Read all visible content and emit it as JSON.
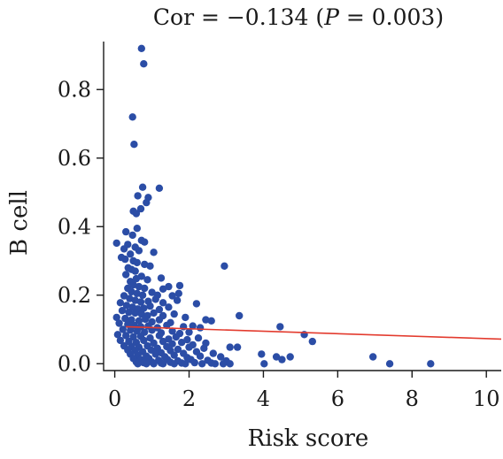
{
  "chart_data": {
    "type": "scatter",
    "title_prefix": "Cor = −0.134 (",
    "title_p": "P",
    "title_suffix": " = 0.003)",
    "xlabel": "Risk score",
    "ylabel": "B cell",
    "xlim": [
      -0.3,
      10.4
    ],
    "ylim": [
      -0.02,
      0.94
    ],
    "xticks": [
      0,
      2,
      4,
      6,
      8,
      10
    ],
    "yticks": [
      0.0,
      0.2,
      0.4,
      0.6,
      0.8
    ],
    "ytick_labels": [
      "0.0",
      "0.2",
      "0.4",
      "0.6",
      "0.8"
    ],
    "grid": false,
    "colors": {
      "points": "#2b4da6",
      "fit_line": "#e33b2e",
      "axis": "#1a1a1a"
    },
    "fit_line": {
      "x": [
        0.3,
        10.4
      ],
      "y": [
        0.108,
        0.072
      ]
    },
    "points": [
      [
        0.72,
        0.92
      ],
      [
        0.78,
        0.875
      ],
      [
        0.48,
        0.72
      ],
      [
        0.52,
        0.64
      ],
      [
        0.75,
        0.515
      ],
      [
        1.2,
        0.512
      ],
      [
        0.62,
        0.49
      ],
      [
        0.9,
        0.485
      ],
      [
        0.85,
        0.47
      ],
      [
        0.5,
        0.445
      ],
      [
        0.58,
        0.438
      ],
      [
        0.7,
        0.452
      ],
      [
        0.3,
        0.385
      ],
      [
        0.6,
        0.395
      ],
      [
        0.48,
        0.375
      ],
      [
        0.72,
        0.36
      ],
      [
        0.8,
        0.355
      ],
      [
        0.05,
        0.352
      ],
      [
        0.35,
        0.348
      ],
      [
        0.55,
        0.34
      ],
      [
        0.25,
        0.335
      ],
      [
        0.65,
        0.33
      ],
      [
        0.42,
        0.32
      ],
      [
        1.05,
        0.325
      ],
      [
        0.18,
        0.31
      ],
      [
        0.28,
        0.305
      ],
      [
        0.5,
        0.3
      ],
      [
        0.6,
        0.295
      ],
      [
        0.8,
        0.29
      ],
      [
        0.36,
        0.28
      ],
      [
        0.45,
        0.275
      ],
      [
        0.55,
        0.27
      ],
      [
        0.95,
        0.285
      ],
      [
        2.95,
        0.285
      ],
      [
        0.3,
        0.26
      ],
      [
        0.72,
        0.255
      ],
      [
        0.58,
        0.248
      ],
      [
        0.42,
        0.24
      ],
      [
        0.88,
        0.245
      ],
      [
        1.25,
        0.25
      ],
      [
        0.5,
        0.23
      ],
      [
        0.65,
        0.225
      ],
      [
        0.35,
        0.22
      ],
      [
        0.8,
        0.22
      ],
      [
        1.45,
        0.225
      ],
      [
        1.75,
        0.228
      ],
      [
        1.3,
        0.218
      ],
      [
        0.45,
        0.21
      ],
      [
        0.6,
        0.205
      ],
      [
        0.75,
        0.2
      ],
      [
        1.0,
        0.208
      ],
      [
        1.15,
        0.2
      ],
      [
        1.55,
        0.198
      ],
      [
        1.72,
        0.205
      ],
      [
        0.25,
        0.198
      ],
      [
        0.4,
        0.19
      ],
      [
        0.55,
        0.185
      ],
      [
        0.7,
        0.18
      ],
      [
        0.9,
        0.182
      ],
      [
        1.1,
        0.188
      ],
      [
        1.3,
        0.178
      ],
      [
        1.68,
        0.185
      ],
      [
        2.2,
        0.175
      ],
      [
        0.15,
        0.178
      ],
      [
        0.32,
        0.17
      ],
      [
        0.48,
        0.165
      ],
      [
        0.62,
        0.16
      ],
      [
        0.78,
        0.162
      ],
      [
        0.95,
        0.168
      ],
      [
        1.2,
        0.158
      ],
      [
        1.45,
        0.165
      ],
      [
        0.2,
        0.155
      ],
      [
        0.38,
        0.15
      ],
      [
        0.55,
        0.148
      ],
      [
        0.72,
        0.145
      ],
      [
        0.88,
        0.14
      ],
      [
        1.05,
        0.148
      ],
      [
        1.3,
        0.14
      ],
      [
        1.6,
        0.145
      ],
      [
        1.9,
        0.135
      ],
      [
        3.35,
        0.14
      ],
      [
        0.05,
        0.135
      ],
      [
        0.28,
        0.132
      ],
      [
        0.45,
        0.128
      ],
      [
        0.65,
        0.125
      ],
      [
        0.82,
        0.13
      ],
      [
        1.0,
        0.122
      ],
      [
        1.2,
        0.128
      ],
      [
        1.5,
        0.12
      ],
      [
        2.6,
        0.125
      ],
      [
        2.45,
        0.128
      ],
      [
        0.12,
        0.118
      ],
      [
        0.35,
        0.115
      ],
      [
        0.52,
        0.112
      ],
      [
        0.7,
        0.108
      ],
      [
        0.9,
        0.11
      ],
      [
        1.15,
        0.105
      ],
      [
        1.4,
        0.112
      ],
      [
        1.85,
        0.108
      ],
      [
        2.1,
        0.11
      ],
      [
        2.3,
        0.105
      ],
      [
        0.22,
        0.1
      ],
      [
        0.42,
        0.098
      ],
      [
        0.6,
        0.095
      ],
      [
        0.8,
        0.092
      ],
      [
        1.0,
        0.098
      ],
      [
        1.25,
        0.09
      ],
      [
        1.55,
        0.095
      ],
      [
        1.75,
        0.088
      ],
      [
        2.0,
        0.092
      ],
      [
        4.45,
        0.108
      ],
      [
        0.08,
        0.085
      ],
      [
        0.3,
        0.082
      ],
      [
        0.5,
        0.078
      ],
      [
        0.7,
        0.08
      ],
      [
        0.95,
        0.075
      ],
      [
        1.2,
        0.082
      ],
      [
        1.45,
        0.072
      ],
      [
        1.65,
        0.078
      ],
      [
        1.95,
        0.07
      ],
      [
        2.25,
        0.075
      ],
      [
        5.1,
        0.085
      ],
      [
        0.15,
        0.068
      ],
      [
        0.38,
        0.065
      ],
      [
        0.58,
        0.062
      ],
      [
        0.78,
        0.068
      ],
      [
        1.05,
        0.06
      ],
      [
        1.3,
        0.065
      ],
      [
        1.55,
        0.058
      ],
      [
        1.8,
        0.062
      ],
      [
        2.1,
        0.055
      ],
      [
        2.45,
        0.06
      ],
      [
        5.32,
        0.065
      ],
      [
        0.25,
        0.052
      ],
      [
        0.45,
        0.05
      ],
      [
        0.65,
        0.048
      ],
      [
        0.88,
        0.052
      ],
      [
        1.15,
        0.045
      ],
      [
        1.4,
        0.05
      ],
      [
        1.7,
        0.042
      ],
      [
        2.0,
        0.048
      ],
      [
        2.4,
        0.045
      ],
      [
        3.1,
        0.048
      ],
      [
        3.3,
        0.048
      ],
      [
        0.35,
        0.04
      ],
      [
        0.55,
        0.038
      ],
      [
        0.75,
        0.035
      ],
      [
        0.98,
        0.04
      ],
      [
        1.25,
        0.032
      ],
      [
        1.5,
        0.038
      ],
      [
        1.85,
        0.03
      ],
      [
        2.2,
        0.035
      ],
      [
        2.65,
        0.03
      ],
      [
        3.95,
        0.028
      ],
      [
        0.42,
        0.028
      ],
      [
        0.62,
        0.025
      ],
      [
        0.85,
        0.022
      ],
      [
        1.1,
        0.028
      ],
      [
        1.35,
        0.02
      ],
      [
        1.6,
        0.025
      ],
      [
        1.95,
        0.018
      ],
      [
        2.3,
        0.022
      ],
      [
        2.85,
        0.02
      ],
      [
        4.35,
        0.02
      ],
      [
        4.72,
        0.02
      ],
      [
        6.95,
        0.02
      ],
      [
        0.5,
        0.015
      ],
      [
        0.7,
        0.012
      ],
      [
        0.92,
        0.015
      ],
      [
        1.18,
        0.01
      ],
      [
        1.42,
        0.012
      ],
      [
        1.7,
        0.008
      ],
      [
        2.05,
        0.012
      ],
      [
        2.5,
        0.01
      ],
      [
        3.0,
        0.008
      ],
      [
        4.5,
        0.012
      ],
      [
        0.58,
        0.005
      ],
      [
        0.78,
        0.003
      ],
      [
        1.0,
        0.005
      ],
      [
        1.25,
        0.002
      ],
      [
        1.5,
        0.004
      ],
      [
        1.8,
        0.002
      ],
      [
        2.15,
        0.003
      ],
      [
        2.6,
        0.002
      ],
      [
        2.92,
        0.0
      ],
      [
        3.1,
        0.0
      ],
      [
        4.02,
        0.0
      ],
      [
        7.4,
        0.0
      ],
      [
        8.5,
        0.0
      ],
      [
        0.62,
        0.0
      ],
      [
        0.85,
        0.0
      ],
      [
        1.05,
        0.0
      ],
      [
        1.3,
        0.0
      ],
      [
        1.6,
        0.0
      ],
      [
        1.9,
        0.0
      ],
      [
        2.35,
        0.0
      ],
      [
        2.7,
        0.0
      ]
    ]
  }
}
